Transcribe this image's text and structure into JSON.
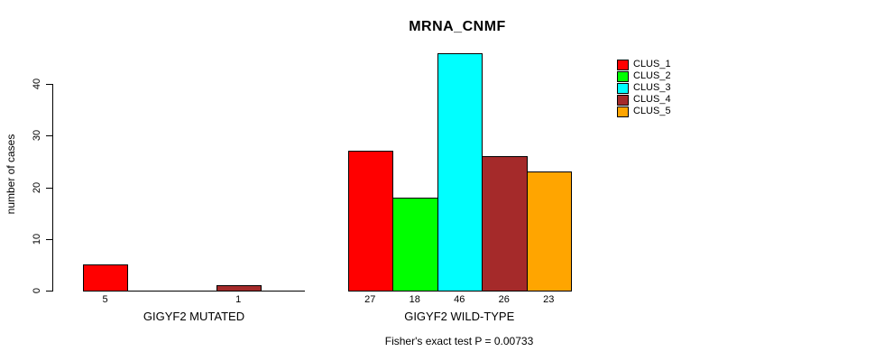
{
  "title": "MRNA_CNMF",
  "chart_data": {
    "type": "bar",
    "title": "MRNA_CNMF",
    "xlabel": "",
    "ylabel": "number of cases",
    "yticks": [
      0,
      10,
      20,
      30,
      40
    ],
    "ylim": [
      0,
      46
    ],
    "grid": false,
    "legend_position": "top-right",
    "legend": [
      {
        "label": "CLUS_1",
        "color": "#FF0000"
      },
      {
        "label": "CLUS_2",
        "color": "#00FF00"
      },
      {
        "label": "CLUS_3",
        "color": "#00FFFF"
      },
      {
        "label": "CLUS_4",
        "color": "#A52A2A"
      },
      {
        "label": "CLUS_5",
        "color": "#FFA500"
      }
    ],
    "series_colors": [
      "#FF0000",
      "#00FF00",
      "#00FFFF",
      "#A52A2A",
      "#FFA500"
    ],
    "groups": [
      {
        "label": "GIGYF2 MUTATED",
        "values": [
          5,
          0,
          0,
          1,
          0
        ],
        "bar_labels": [
          "5",
          "",
          "",
          "1",
          ""
        ]
      },
      {
        "label": "GIGYF2 WILD-TYPE",
        "values": [
          27,
          18,
          46,
          26,
          23
        ],
        "bar_labels": [
          "27",
          "18",
          "46",
          "26",
          "23"
        ]
      }
    ],
    "annotation": "Fisher's exact test P = 0.00733"
  }
}
